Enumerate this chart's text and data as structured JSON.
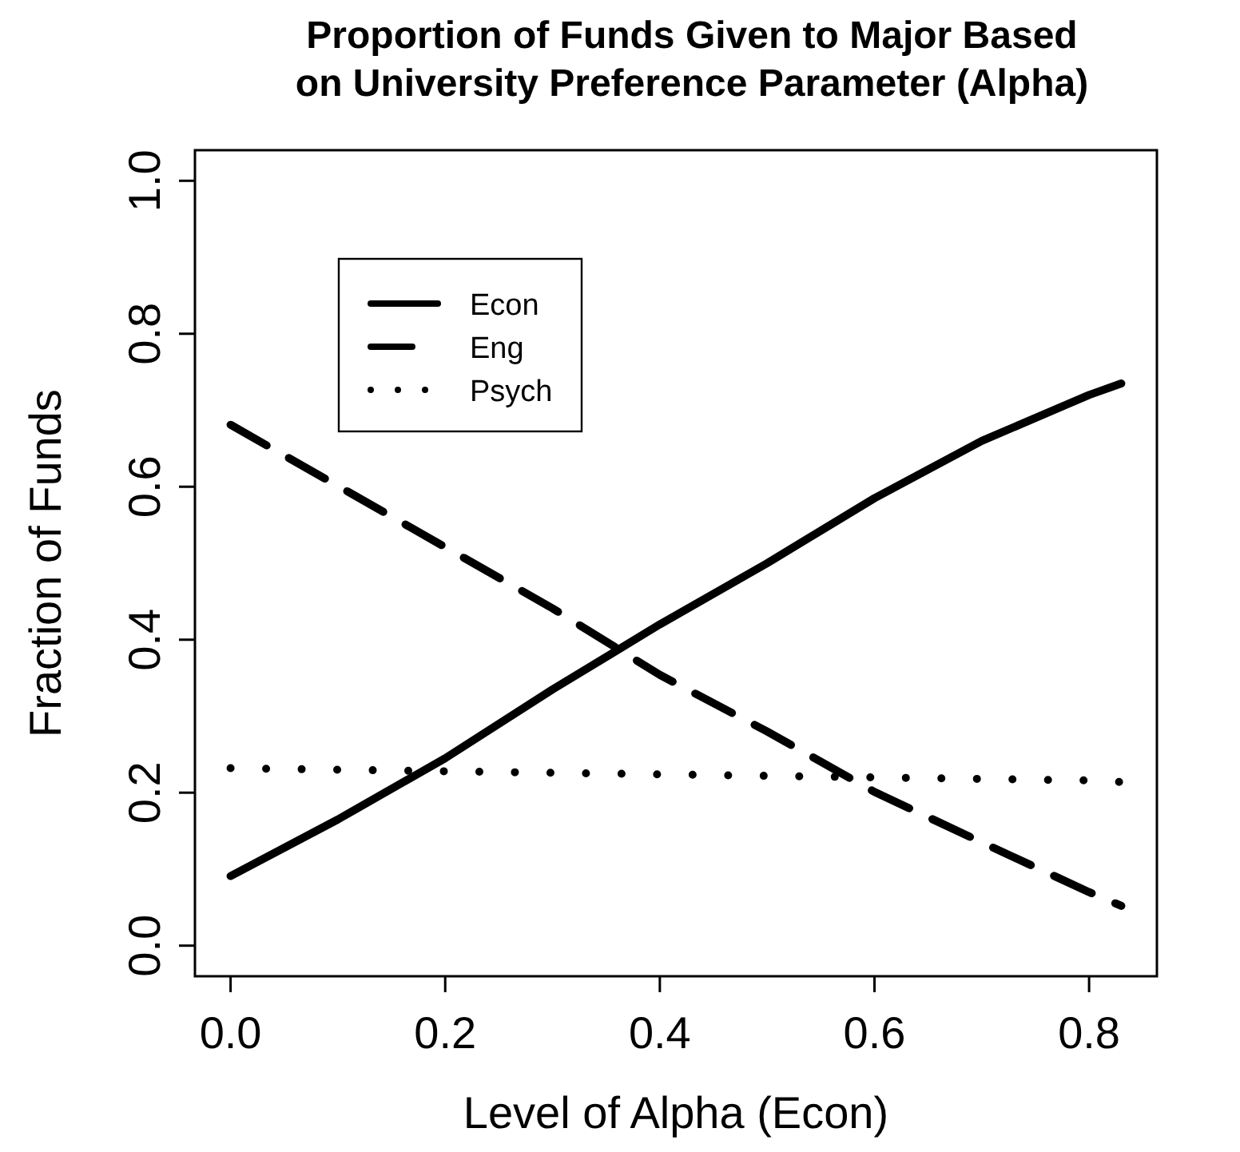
{
  "chart_data": {
    "type": "line",
    "title": "Proportion of Funds Given to Major Based\non University Preference Parameter (Alpha)",
    "xlabel": "Level of Alpha (Econ)",
    "ylabel": "Fraction of Funds",
    "x": [
      0,
      0.1,
      0.2,
      0.3,
      0.4,
      0.5,
      0.6,
      0.7,
      0.8,
      0.83
    ],
    "series": [
      {
        "name": "Econ",
        "color": "#000000",
        "line_style": "solid",
        "values": [
          0.091,
          0.165,
          0.245,
          0.335,
          0.42,
          0.5,
          0.585,
          0.66,
          0.72,
          0.735
        ]
      },
      {
        "name": "Eng",
        "color": "#000000",
        "line_style": "dashed",
        "values": [
          0.681,
          0.601,
          0.521,
          0.441,
          0.354,
          0.28,
          0.201,
          0.135,
          0.07,
          0.052
        ]
      },
      {
        "name": "Psych",
        "color": "#000000",
        "line_style": "dotted",
        "values": [
          0.232,
          0.23,
          0.228,
          0.226,
          0.224,
          0.222,
          0.22,
          0.218,
          0.216,
          0.214
        ]
      }
    ],
    "xlim": [
      -0.0332,
      0.8632
    ],
    "ylim": [
      -0.04,
      1.04
    ],
    "xticks": [
      {
        "value": 0,
        "label": "0.0"
      },
      0.2,
      0.4,
      0.6,
      0.8
    ],
    "yticks": [
      {
        "value": 0,
        "label": "0.0"
      },
      0.2,
      0.4,
      0.6,
      0.8,
      {
        "value": 1,
        "label": "1.0"
      }
    ],
    "grid": false,
    "legend": "top left"
  }
}
